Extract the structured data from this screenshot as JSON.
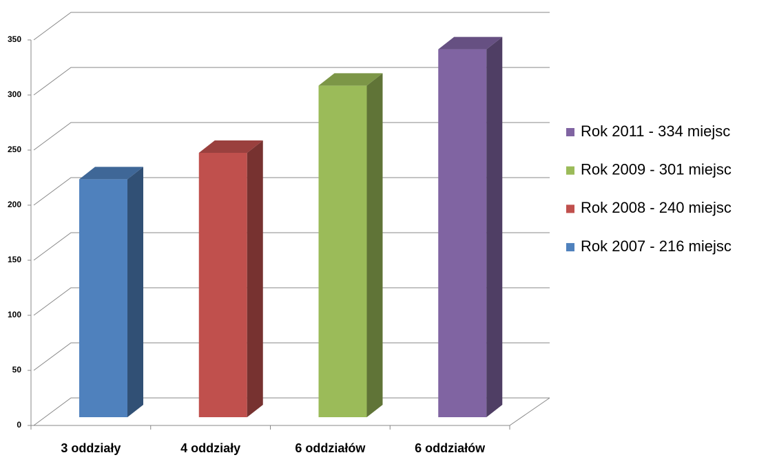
{
  "chart_data": {
    "type": "bar3d",
    "categories": [
      "3 oddziały",
      "4 oddziały",
      "6 oddziałów",
      "6 oddziałów"
    ],
    "series": [
      {
        "name": "Rok 2007 - 216 miejsc",
        "color": "#4f81bd",
        "values": [
          216,
          null,
          null,
          null
        ]
      },
      {
        "name": "Rok 2008 - 240 miejsc",
        "color": "#c0504d",
        "values": [
          null,
          240,
          null,
          null
        ]
      },
      {
        "name": "Rok 2009 - 301 miejsc",
        "color": "#9bbb59",
        "values": [
          null,
          null,
          301,
          null
        ]
      },
      {
        "name": "Rok 2011 - 334 miejsc",
        "color": "#8064a2",
        "values": [
          null,
          null,
          null,
          334
        ]
      }
    ],
    "ylim": [
      0,
      350
    ],
    "yticks": [
      0,
      50,
      100,
      150,
      200,
      250,
      300,
      350
    ],
    "grid": true,
    "legend": "right"
  }
}
